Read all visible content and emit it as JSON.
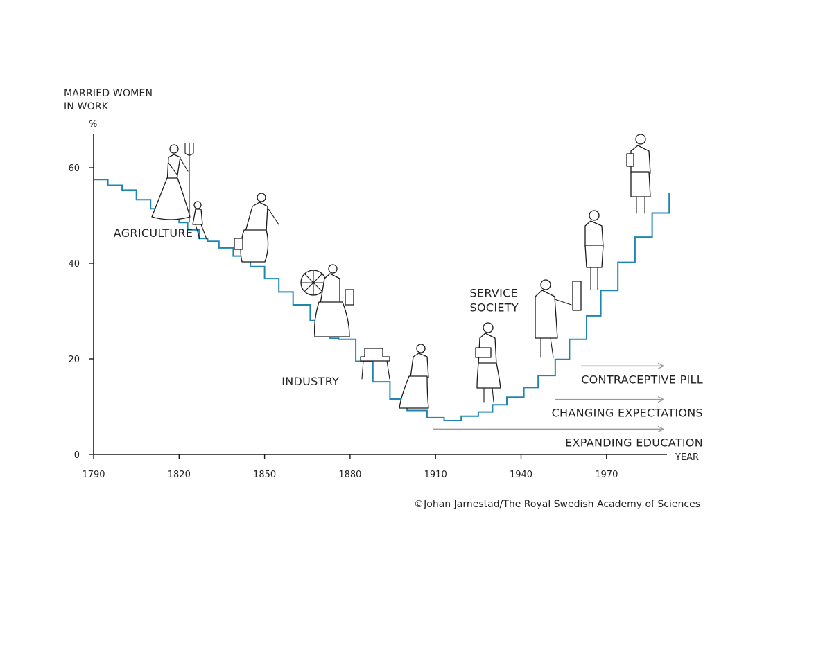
{
  "chart_data": {
    "type": "line",
    "step": true,
    "ylabel": [
      "MARRIED WOMEN",
      "IN WORK"
    ],
    "yunit": "%",
    "xlabel": "YEAR",
    "xlim": [
      1790,
      1992
    ],
    "ylim": [
      0,
      68
    ],
    "xticks": [
      1790,
      1820,
      1850,
      1880,
      1910,
      1940,
      1970
    ],
    "yticks": [
      0,
      20,
      40,
      60
    ],
    "line_color": "#1f86b4",
    "arrow_color": "#9a9a9a",
    "series": [
      {
        "x": [
          1790,
          1795,
          1800,
          1805,
          1810,
          1815,
          1820,
          1823,
          1827,
          1830,
          1834,
          1839,
          1845,
          1850,
          1855,
          1860,
          1866,
          1873,
          1876,
          1882,
          1888,
          1894,
          1900,
          1907,
          1913,
          1919,
          1925,
          1930,
          1935,
          1941,
          1946,
          1952,
          1957,
          1963,
          1968,
          1974,
          1980,
          1986,
          1992
        ],
        "y": [
          57.5,
          56.3,
          55.3,
          53.3,
          51.4,
          49.5,
          48.5,
          47.0,
          45.2,
          44.6,
          43.2,
          41.5,
          39.3,
          36.8,
          34.0,
          31.3,
          28.0,
          24.3,
          24.1,
          19.5,
          15.2,
          11.6,
          9.2,
          7.7,
          7.1,
          8.0,
          8.9,
          10.4,
          12.0,
          14.0,
          16.5,
          19.9,
          24.1,
          29.0,
          34.3,
          40.2,
          45.5,
          50.5,
          54.7
        ]
      }
    ],
    "eras": [
      {
        "label": "AGRICULTURE",
        "x": 1797,
        "y": 45.5
      },
      {
        "label": "INDUSTRY",
        "x": 1856,
        "y": 14.5
      },
      {
        "label": "SERVICE SOCIETY",
        "x": 1922,
        "y": 33.0
      }
    ],
    "factors": [
      {
        "label": "CONTRACEPTIVE PILL",
        "start": 1961,
        "end": 1990,
        "y": 18.5
      },
      {
        "label": "CHANGING EXPECTATIONS",
        "start": 1952,
        "end": 1990,
        "y": 11.5
      },
      {
        "label": "EXPANDING EDUCATION",
        "start": 1909,
        "end": 1990,
        "y": 5.3
      }
    ],
    "credit": "©Johan Jarnestad/The Royal Swedish Academy of Sciences"
  }
}
